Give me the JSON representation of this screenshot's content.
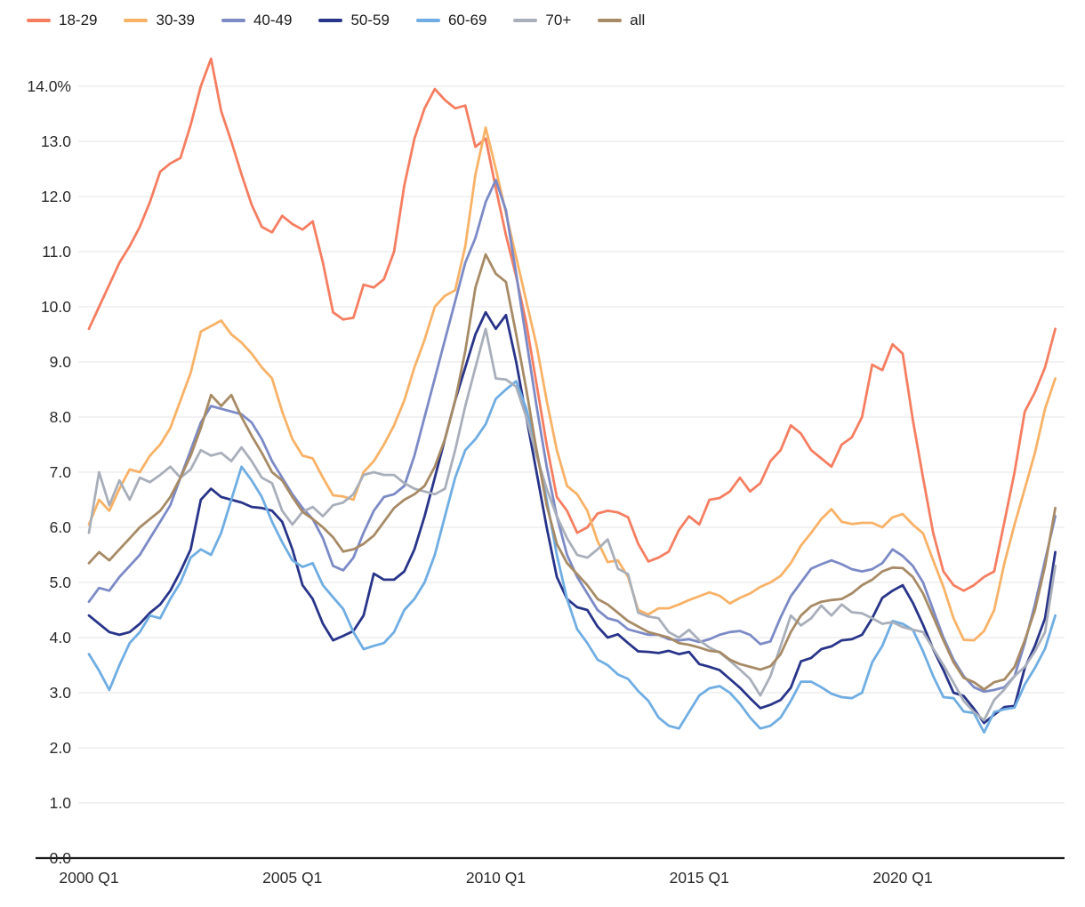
{
  "chart_data": {
    "type": "line",
    "title": "",
    "xlabel": "",
    "ylabel": "",
    "unit": "%",
    "frequency": "quarterly",
    "x_start": "2000 Q1",
    "x_end": "2023 Q4",
    "ylim": [
      0,
      14.6
    ],
    "grid": "horizontal",
    "legend_position": "top-left",
    "y_tick_labels": [
      "0.0",
      "1.0",
      "2.0",
      "3.0",
      "4.0",
      "5.0",
      "6.0",
      "7.0",
      "8.0",
      "9.0",
      "10.0",
      "11.0",
      "12.0",
      "13.0",
      "14.0%"
    ],
    "x_ticks": [
      {
        "label": "2000 Q1",
        "quarter_index": 0
      },
      {
        "label": "2005 Q1",
        "quarter_index": 20
      },
      {
        "label": "2010 Q1",
        "quarter_index": 40
      },
      {
        "label": "2015 Q1",
        "quarter_index": 60
      },
      {
        "label": "2020 Q1",
        "quarter_index": 80
      }
    ],
    "series": [
      {
        "name": "18-29",
        "color": "#f57e61",
        "values": [
          9.6,
          10.0,
          10.4,
          10.8,
          11.1,
          11.45,
          11.9,
          12.45,
          12.6,
          12.7,
          13.3,
          14.0,
          14.5,
          13.55,
          13.0,
          12.4,
          11.85,
          11.45,
          11.35,
          11.65,
          11.5,
          11.4,
          11.55,
          10.8,
          9.9,
          9.77,
          9.8,
          10.4,
          10.35,
          10.5,
          11.0,
          12.2,
          13.05,
          13.6,
          13.95,
          13.75,
          13.6,
          13.65,
          12.9,
          13.05,
          12.15,
          11.3,
          10.55,
          9.7,
          8.6,
          7.5,
          6.55,
          6.3,
          5.9,
          6.0,
          6.25,
          6.3,
          6.27,
          6.18,
          5.7,
          5.38,
          5.45,
          5.56,
          5.95,
          6.2,
          6.05,
          6.5,
          6.53,
          6.65,
          6.9,
          6.65,
          6.8,
          7.2,
          7.4,
          7.85,
          7.7,
          7.4,
          7.25,
          7.1,
          7.5,
          7.63,
          8.0,
          8.95,
          8.85,
          9.32,
          9.15,
          7.95,
          6.9,
          5.9,
          5.2,
          4.95,
          4.85,
          4.95,
          5.1,
          5.2,
          6.1,
          7.0,
          8.1,
          8.45,
          8.9,
          9.6
        ]
      },
      {
        "name": "30-39",
        "color": "#f8b267",
        "values": [
          6.05,
          6.5,
          6.3,
          6.7,
          7.05,
          7.0,
          7.3,
          7.5,
          7.8,
          8.3,
          8.8,
          9.55,
          9.65,
          9.75,
          9.5,
          9.35,
          9.15,
          8.9,
          8.7,
          8.1,
          7.6,
          7.3,
          7.25,
          6.9,
          6.58,
          6.56,
          6.5,
          7.0,
          7.2,
          7.5,
          7.85,
          8.3,
          8.9,
          9.4,
          10.0,
          10.2,
          10.3,
          11.1,
          12.4,
          13.25,
          12.5,
          11.7,
          10.9,
          10.1,
          9.3,
          8.3,
          7.4,
          6.75,
          6.6,
          6.3,
          5.75,
          5.37,
          5.4,
          5.1,
          4.5,
          4.42,
          4.53,
          4.53,
          4.6,
          4.68,
          4.75,
          4.82,
          4.76,
          4.62,
          4.72,
          4.8,
          4.92,
          5.0,
          5.12,
          5.35,
          5.67,
          5.9,
          6.15,
          6.33,
          6.1,
          6.06,
          6.08,
          6.08,
          6.0,
          6.18,
          6.24,
          6.05,
          5.89,
          5.4,
          4.92,
          4.35,
          3.96,
          3.95,
          4.12,
          4.5,
          5.35,
          6.05,
          6.7,
          7.35,
          8.15,
          8.7
        ]
      },
      {
        "name": "40-49",
        "color": "#7c8ac6",
        "values": [
          4.65,
          4.9,
          4.85,
          5.1,
          5.3,
          5.5,
          5.8,
          6.1,
          6.4,
          6.9,
          7.4,
          7.9,
          8.2,
          8.15,
          8.1,
          8.05,
          7.9,
          7.6,
          7.2,
          6.9,
          6.6,
          6.35,
          6.15,
          5.8,
          5.3,
          5.22,
          5.45,
          5.9,
          6.3,
          6.55,
          6.6,
          6.75,
          7.3,
          8.0,
          8.7,
          9.4,
          10.1,
          10.8,
          11.25,
          11.9,
          12.3,
          11.75,
          10.6,
          9.4,
          8.2,
          7.1,
          6.2,
          5.5,
          5.1,
          4.8,
          4.5,
          4.35,
          4.3,
          4.15,
          4.1,
          4.05,
          4.05,
          3.97,
          3.95,
          3.97,
          3.92,
          3.97,
          4.05,
          4.1,
          4.12,
          4.05,
          3.88,
          3.93,
          4.37,
          4.75,
          5.0,
          5.25,
          5.33,
          5.4,
          5.33,
          5.24,
          5.2,
          5.24,
          5.35,
          5.6,
          5.48,
          5.3,
          5.0,
          4.5,
          4.0,
          3.6,
          3.3,
          3.1,
          3.02,
          3.05,
          3.1,
          3.3,
          3.9,
          4.6,
          5.4,
          6.2
        ]
      },
      {
        "name": "50-59",
        "color": "#283489",
        "values": [
          4.4,
          4.25,
          4.1,
          4.05,
          4.1,
          4.25,
          4.45,
          4.6,
          4.85,
          5.2,
          5.6,
          6.5,
          6.7,
          6.55,
          6.5,
          6.45,
          6.37,
          6.35,
          6.3,
          6.1,
          5.6,
          4.95,
          4.7,
          4.25,
          3.95,
          4.03,
          4.12,
          4.4,
          5.16,
          5.05,
          5.05,
          5.2,
          5.6,
          6.2,
          6.9,
          7.6,
          8.3,
          8.9,
          9.5,
          9.9,
          9.6,
          9.85,
          9.0,
          8.0,
          7.0,
          6.0,
          5.1,
          4.7,
          4.55,
          4.5,
          4.2,
          4.0,
          4.06,
          3.9,
          3.75,
          3.74,
          3.72,
          3.76,
          3.7,
          3.74,
          3.52,
          3.47,
          3.41,
          3.25,
          3.09,
          2.9,
          2.72,
          2.78,
          2.87,
          3.09,
          3.57,
          3.63,
          3.79,
          3.84,
          3.95,
          3.97,
          4.05,
          4.35,
          4.72,
          4.85,
          4.95,
          4.63,
          4.23,
          3.79,
          3.41,
          3.0,
          2.94,
          2.71,
          2.45,
          2.6,
          2.74,
          2.76,
          3.45,
          3.85,
          4.35,
          5.55
        ]
      },
      {
        "name": "60-69",
        "color": "#6fade2",
        "values": [
          3.7,
          3.4,
          3.05,
          3.5,
          3.9,
          4.1,
          4.4,
          4.35,
          4.7,
          5.0,
          5.45,
          5.6,
          5.5,
          5.9,
          6.5,
          7.1,
          6.85,
          6.55,
          6.1,
          5.73,
          5.4,
          5.28,
          5.35,
          4.95,
          4.73,
          4.52,
          4.1,
          3.79,
          3.85,
          3.9,
          4.1,
          4.5,
          4.7,
          5.0,
          5.5,
          6.2,
          6.9,
          7.4,
          7.6,
          7.87,
          8.33,
          8.5,
          8.65,
          8.15,
          7.4,
          6.5,
          5.5,
          4.7,
          4.15,
          3.9,
          3.6,
          3.5,
          3.33,
          3.25,
          3.03,
          2.85,
          2.55,
          2.4,
          2.35,
          2.65,
          2.95,
          3.08,
          3.12,
          3.0,
          2.8,
          2.55,
          2.35,
          2.4,
          2.55,
          2.85,
          3.2,
          3.2,
          3.1,
          2.98,
          2.92,
          2.9,
          3.0,
          3.55,
          3.85,
          4.3,
          4.25,
          4.14,
          3.75,
          3.3,
          2.92,
          2.9,
          2.66,
          2.63,
          2.28,
          2.65,
          2.7,
          2.73,
          3.15,
          3.45,
          3.8,
          4.4
        ]
      },
      {
        "name": "70+",
        "color": "#a9afba",
        "values": [
          5.9,
          7.0,
          6.4,
          6.85,
          6.5,
          6.9,
          6.82,
          6.95,
          7.1,
          6.9,
          7.05,
          7.4,
          7.3,
          7.35,
          7.2,
          7.45,
          7.2,
          6.9,
          6.8,
          6.3,
          6.05,
          6.28,
          6.37,
          6.2,
          6.4,
          6.45,
          6.6,
          6.95,
          7.0,
          6.95,
          6.95,
          6.8,
          6.7,
          6.65,
          6.6,
          6.7,
          7.4,
          8.2,
          8.9,
          9.6,
          8.7,
          8.68,
          8.55,
          8.0,
          7.3,
          6.7,
          6.2,
          5.8,
          5.5,
          5.45,
          5.6,
          5.78,
          5.25,
          5.15,
          4.45,
          4.38,
          4.35,
          4.1,
          4.0,
          4.14,
          3.95,
          3.82,
          3.73,
          3.58,
          3.42,
          3.25,
          2.95,
          3.3,
          3.85,
          4.4,
          4.22,
          4.35,
          4.58,
          4.4,
          4.6,
          4.46,
          4.44,
          4.35,
          4.25,
          4.28,
          4.19,
          4.14,
          4.1,
          3.8,
          3.5,
          3.18,
          2.85,
          2.65,
          2.5,
          2.87,
          3.06,
          3.3,
          3.47,
          3.75,
          4.1,
          5.3
        ]
      },
      {
        "name": "all",
        "color": "#a78b66",
        "values": [
          5.35,
          5.55,
          5.4,
          5.6,
          5.8,
          6.0,
          6.15,
          6.3,
          6.55,
          6.9,
          7.3,
          7.8,
          8.4,
          8.2,
          8.4,
          8.0,
          7.66,
          7.35,
          7.0,
          6.85,
          6.55,
          6.28,
          6.15,
          6.0,
          5.82,
          5.56,
          5.6,
          5.7,
          5.85,
          6.1,
          6.35,
          6.5,
          6.6,
          6.75,
          7.1,
          7.6,
          8.3,
          9.2,
          10.35,
          10.95,
          10.6,
          10.45,
          9.5,
          8.5,
          7.4,
          6.4,
          5.7,
          5.35,
          5.15,
          4.95,
          4.7,
          4.6,
          4.45,
          4.3,
          4.2,
          4.1,
          4.05,
          4.0,
          3.9,
          3.87,
          3.82,
          3.76,
          3.74,
          3.6,
          3.52,
          3.47,
          3.42,
          3.48,
          3.7,
          4.1,
          4.4,
          4.57,
          4.65,
          4.68,
          4.7,
          4.8,
          4.95,
          5.05,
          5.2,
          5.27,
          5.26,
          5.1,
          4.8,
          4.38,
          3.95,
          3.55,
          3.27,
          3.19,
          3.06,
          3.19,
          3.24,
          3.47,
          3.95,
          4.5,
          5.3,
          6.35
        ]
      }
    ]
  }
}
